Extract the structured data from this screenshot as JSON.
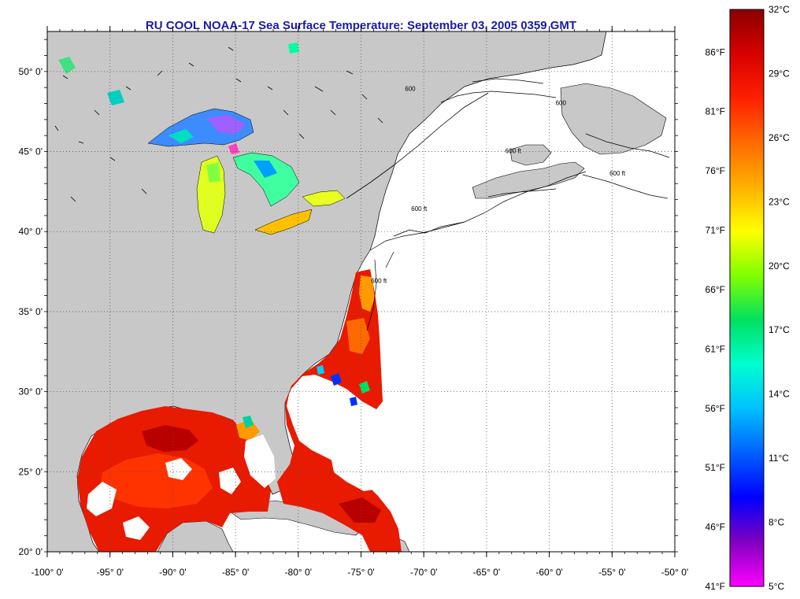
{
  "title": "RU COOL  NOAA-17  Sea Surface Temperature:  September 03, 2005 0359 GMT",
  "map": {
    "longitude_range": [
      -100,
      -50
    ],
    "latitude_range": [
      20,
      52.5
    ],
    "x_ticks": [
      {
        "value": -100,
        "label": "-100° 0'"
      },
      {
        "value": -95,
        "label": "-95° 0'"
      },
      {
        "value": -90,
        "label": "-90° 0'"
      },
      {
        "value": -85,
        "label": "-85° 0'"
      },
      {
        "value": -80,
        "label": "-80° 0'"
      },
      {
        "value": -75,
        "label": "-75° 0'"
      },
      {
        "value": -70,
        "label": "-70° 0'"
      },
      {
        "value": -65,
        "label": "-65° 0'"
      },
      {
        "value": -60,
        "label": "-60° 0'"
      },
      {
        "value": -55,
        "label": "-55° 0'"
      },
      {
        "value": -50,
        "label": "-50° 0'"
      }
    ],
    "y_ticks": [
      {
        "value": 20,
        "label": "20° 0'"
      },
      {
        "value": 25,
        "label": "25° 0'"
      },
      {
        "value": 30,
        "label": "30° 0'"
      },
      {
        "value": 35,
        "label": "35° 0'"
      },
      {
        "value": 40,
        "label": "40° 0'"
      },
      {
        "value": 45,
        "label": "45° 0'"
      },
      {
        "value": 50,
        "label": "50° 0'"
      }
    ],
    "contour_labels": [
      {
        "text": "600",
        "lon": -71.5,
        "lat": 48.8
      },
      {
        "text": "600 ft",
        "lon": -71,
        "lat": 41.3
      },
      {
        "text": "600 ft",
        "lon": -74.2,
        "lat": 36.8
      },
      {
        "text": "600 ft",
        "lon": -55.2,
        "lat": 43.5
      },
      {
        "text": "600 ft",
        "lon": -63.5,
        "lat": 44.9
      },
      {
        "text": "600",
        "lon": -59.5,
        "lat": 47.9
      }
    ],
    "colors": {
      "land": "#c8c8c8",
      "ocean": "#ffffff"
    }
  },
  "colorbar": {
    "celsius_range": [
      5,
      32
    ],
    "celsius_labels": [
      "32°C",
      "29°C",
      "26°C",
      "23°C",
      "20°C",
      "17°C",
      "14°C",
      "11°C",
      "8°C",
      "5°C"
    ],
    "fahrenheit_labels": [
      "86°F",
      "81°F",
      "76°F",
      "71°F",
      "66°F",
      "61°F",
      "56°F",
      "51°F",
      "46°F",
      "41°F"
    ],
    "fahrenheit_values": [
      86,
      81,
      76,
      71,
      66,
      61,
      56,
      51,
      46,
      41
    ],
    "gradient": [
      "#8b0000",
      "#d70000",
      "#ff2000",
      "#ff6a00",
      "#ffb000",
      "#ffff00",
      "#80ff00",
      "#00e060",
      "#00ffd0",
      "#00c0ff",
      "#0060ff",
      "#0000ff",
      "#8000c0",
      "#ff00ff"
    ]
  }
}
